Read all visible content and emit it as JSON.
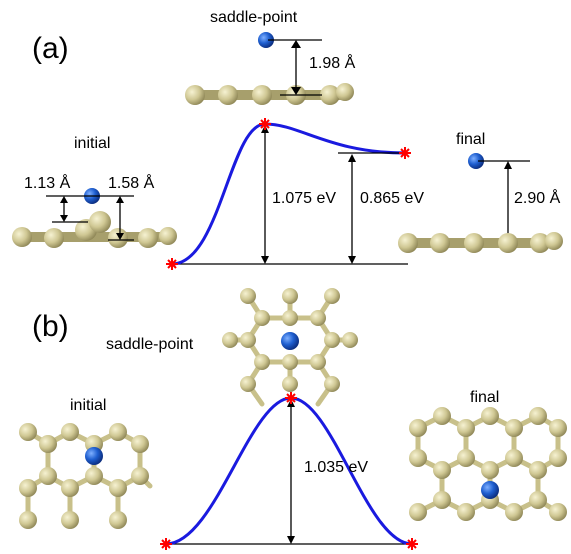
{
  "panel_a": {
    "letter": "(a)",
    "initial_label": "initial",
    "saddle_label": "saddle-point",
    "final_label": "final",
    "dist_initial_left": "1.13 Å",
    "dist_initial_right": "1.58 Å",
    "dist_saddle": "1.98 Å",
    "dist_final": "2.90 Å",
    "barrier": "1.075 eV",
    "energy_diff": "0.865 eV"
  },
  "panel_b": {
    "letter": "(b)",
    "initial_label": "initial",
    "saddle_label": "saddle-point",
    "final_label": "final",
    "barrier": "1.035 eV"
  },
  "colors": {
    "curve": "#1a1adf",
    "marker": "#ff0000",
    "carbon": "#c8c08a",
    "adatom": "#1f5fd0"
  }
}
